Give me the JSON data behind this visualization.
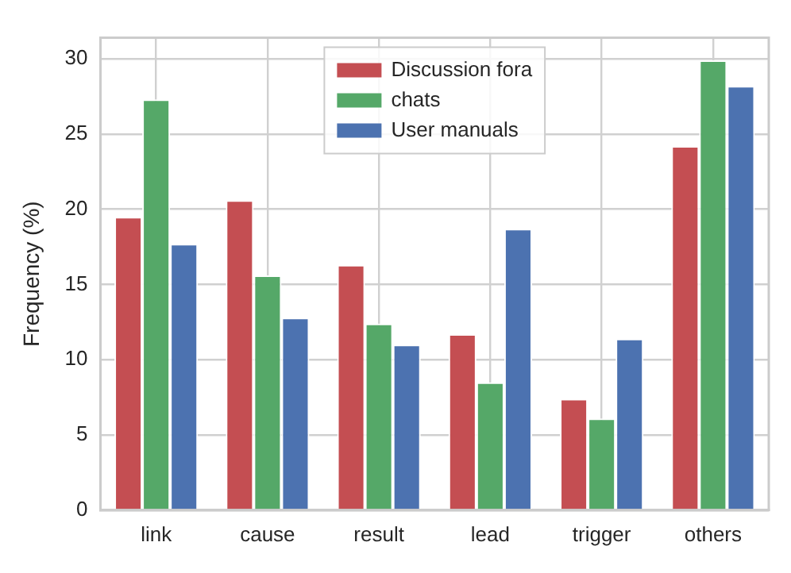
{
  "chart_data": {
    "type": "bar",
    "ylabel": "Frequency (%)",
    "categories": [
      "link",
      "cause",
      "result",
      "lead",
      "trigger",
      "others"
    ],
    "series": [
      {
        "name": "Discussion fora",
        "color": "#c44e52",
        "values": [
          19.5,
          20.6,
          16.3,
          11.7,
          7.4,
          24.2
        ]
      },
      {
        "name": "chats",
        "color": "#55a868",
        "values": [
          27.3,
          15.6,
          12.4,
          8.5,
          6.1,
          29.9
        ]
      },
      {
        "name": "User manuals",
        "color": "#4c72b0",
        "values": [
          17.7,
          12.8,
          11.0,
          18.7,
          11.4,
          28.2
        ]
      }
    ],
    "ylim": [
      0,
      31.4
    ],
    "yticks": [
      0,
      5,
      10,
      15,
      20,
      25,
      30
    ],
    "grid": true,
    "legend": "top"
  }
}
